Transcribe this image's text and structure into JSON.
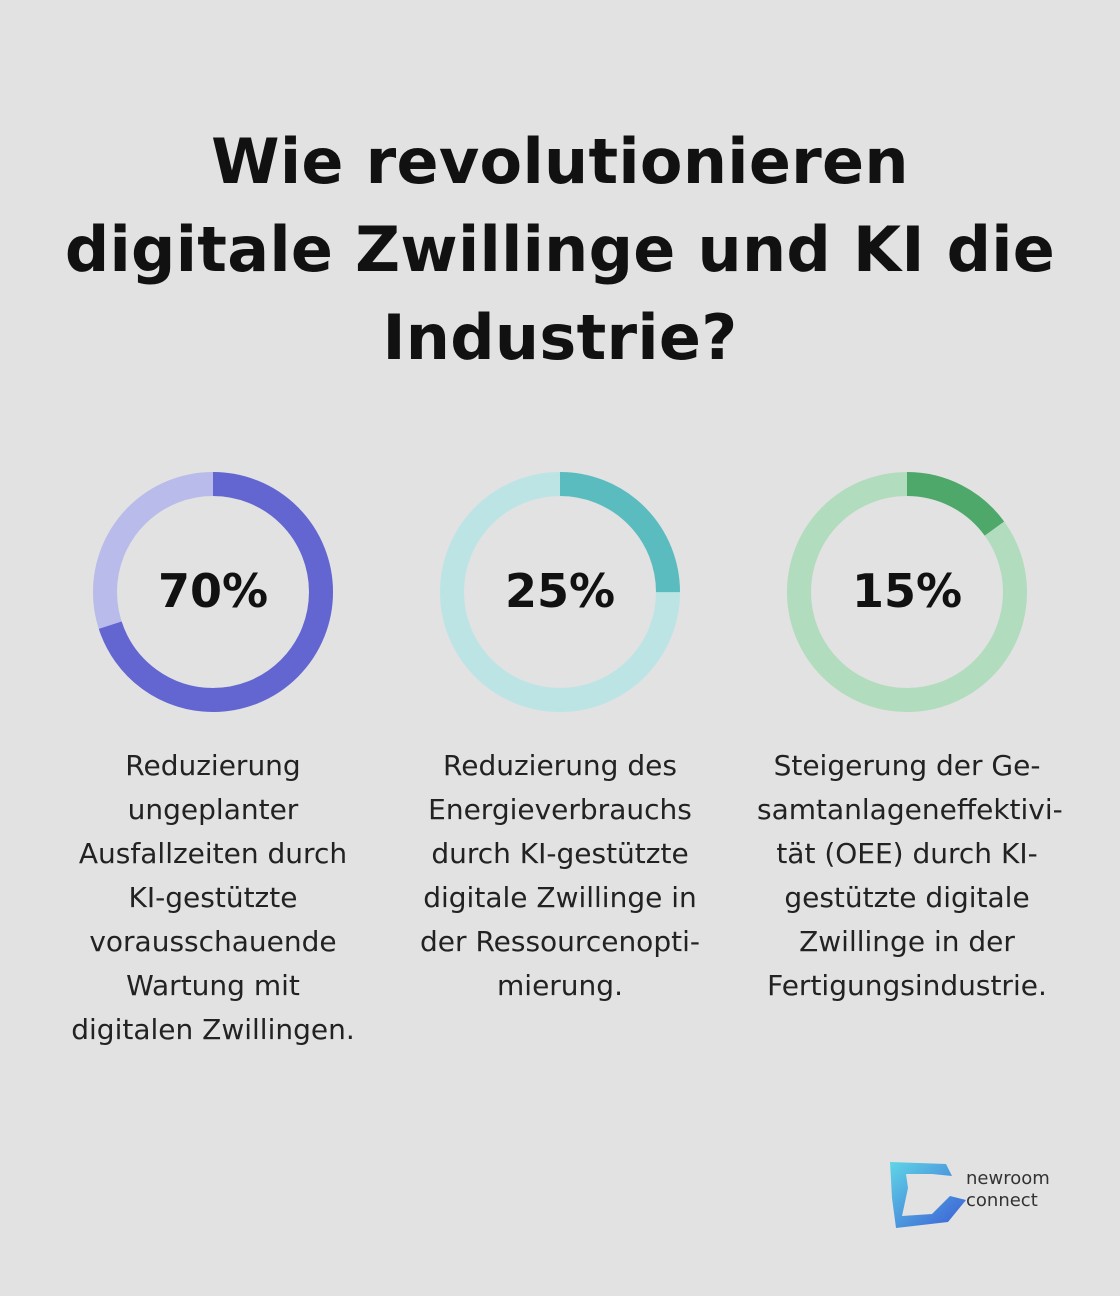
{
  "title_lines": [
    "Wie revolutionieren",
    "digitale Zwillinge und KI die",
    "Industrie?"
  ],
  "chart_data": {
    "type": "donut",
    "items": [
      {
        "value": 70,
        "label": "70%",
        "color": "#6366d1",
        "track_color": "#b9bbea",
        "description_lines": [
          "Reduzierung",
          "ungeplanter",
          "Ausfallzeiten durch",
          "KI-gestützte",
          "vorausschauende",
          "Wartung mit",
          "digitalen Zwillingen."
        ]
      },
      {
        "value": 25,
        "label": "25%",
        "color": "#5bbcbf",
        "track_color": "#bde4e5",
        "description_lines": [
          "Reduzierung des",
          "Energieverbrauchs",
          "durch KI-gestützte",
          "digitale Zwillinge in",
          "der Ressourcenopti-",
          "mierung."
        ]
      },
      {
        "value": 15,
        "label": "15%",
        "color": "#4ea86a",
        "track_color": "#b2dcbe",
        "description_lines": [
          "Steigerung der Ge-",
          "samtanlageneffektivi-",
          "tät (OEE) durch KI-",
          "gestützte digitale",
          "Zwillinge in der",
          "Fertigungsindustrie."
        ]
      }
    ]
  },
  "logo": {
    "line1": "newroom",
    "line2": "connect",
    "colors": [
      "#5fd6e6",
      "#3b5bd6"
    ]
  }
}
